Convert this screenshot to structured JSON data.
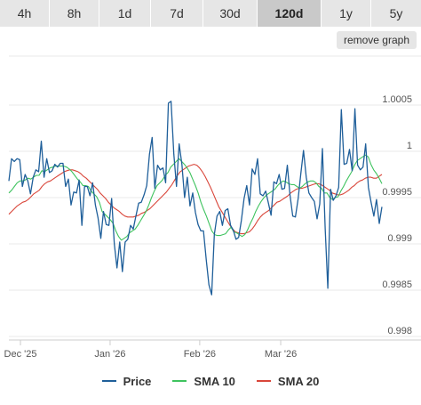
{
  "timeframes": {
    "items": [
      "4h",
      "8h",
      "1d",
      "7d",
      "30d",
      "120d",
      "1y",
      "5y"
    ],
    "active": "120d"
  },
  "remove_graph_label": "remove graph",
  "colors": {
    "price": "#1f5f9a",
    "sma10": "#3fc35f",
    "sma20": "#d9463a",
    "grid": "#e8e8e8",
    "axis_text": "#555555"
  },
  "chart_data": {
    "type": "line",
    "ylim": [
      0.998,
      1.0005
    ],
    "yticks": [
      0.998,
      0.9985,
      0.999,
      0.9995,
      1,
      1.0005
    ],
    "ytick_labels": [
      "0.998",
      "0.9985",
      "0.999",
      "0.9995",
      "1",
      "1.0005"
    ],
    "xlim": [
      0,
      129
    ],
    "xticks": [
      {
        "x": 4,
        "label": "Dec '25"
      },
      {
        "x": 35,
        "label": "Jan '26"
      },
      {
        "x": 66,
        "label": "Feb '26"
      },
      {
        "x": 94,
        "label": "Mar '26"
      }
    ],
    "grid": true,
    "legend": "bottom",
    "series": [
      {
        "name": "Price",
        "values": [
          0.99968,
          0.99992,
          0.99989,
          0.99992,
          0.99991,
          0.99962,
          0.99975,
          0.99968,
          0.99954,
          0.99972,
          0.9998,
          0.99978,
          1.00011,
          0.99972,
          0.99992,
          0.99977,
          0.99979,
          0.99986,
          0.99983,
          0.99987,
          0.99987,
          0.99962,
          0.9997,
          0.99942,
          0.99956,
          0.99955,
          0.99969,
          0.9992,
          0.99962,
          0.99962,
          0.99952,
          0.99966,
          0.99942,
          0.99928,
          0.99906,
          0.99935,
          0.99921,
          0.9992,
          0.99949,
          0.999,
          0.99874,
          0.99902,
          0.9987,
          0.99902,
          0.99905,
          0.9992,
          0.99916,
          0.9993,
          0.99944,
          0.99945,
          0.99953,
          0.99963,
          0.99997,
          1.00015,
          0.9996,
          0.99985,
          0.9998,
          0.99982,
          0.99966,
          1.00052,
          1.00054,
          0.99997,
          0.99962,
          1.00008,
          0.99986,
          0.9995,
          0.99972,
          0.99941,
          0.99955,
          0.99934,
          0.99921,
          0.99914,
          0.99914,
          0.99883,
          0.99856,
          0.99845,
          0.9991,
          0.9993,
          0.99935,
          0.9992,
          0.99936,
          0.99938,
          0.9992,
          0.99915,
          0.99905,
          0.99907,
          0.99925,
          0.99949,
          0.99963,
          0.99942,
          0.99981,
          0.99975,
          0.99992,
          0.99954,
          0.99952,
          0.99957,
          0.99944,
          0.99931,
          0.99967,
          0.99965,
          0.99975,
          0.99959,
          0.9996,
          0.99985,
          0.99953,
          0.9993,
          0.99929,
          0.99949,
          0.99976,
          1.00001,
          0.99972,
          0.99955,
          0.9995,
          0.99946,
          0.99927,
          0.99943,
          1.00003,
          0.99917,
          0.99852,
          0.99959,
          0.99947,
          0.99952,
          0.99961,
          1.00045,
          0.99986,
          0.99987,
          1.00002,
          0.99979,
          1.00046,
          0.99985,
          0.9998,
          0.99983,
          1.00008,
          0.99961,
          0.99945,
          0.9993,
          0.99948,
          0.99922,
          0.9994
        ]
      },
      {
        "name": "SMA 10",
        "values": [
          0.99955,
          0.99958,
          0.99962,
          0.99966,
          0.99968,
          0.99968,
          0.99969,
          0.99971,
          0.9997,
          0.99972,
          0.99974,
          0.99974,
          0.99979,
          0.99978,
          0.9998,
          0.99982,
          0.99983,
          0.99984,
          0.99984,
          0.99984,
          0.99984,
          0.99983,
          0.99981,
          0.99978,
          0.99974,
          0.9997,
          0.99967,
          0.99963,
          0.99963,
          0.99962,
          0.99957,
          0.99954,
          0.99951,
          0.99945,
          0.99935,
          0.99932,
          0.99929,
          0.99926,
          0.99922,
          0.99914,
          0.99908,
          0.99904,
          0.99906,
          0.99908,
          0.99912,
          0.99914,
          0.99916,
          0.9992,
          0.99925,
          0.9993,
          0.99935,
          0.99942,
          0.9995,
          0.99957,
          0.99963,
          0.99966,
          0.99969,
          0.99974,
          0.99977,
          0.99983,
          0.99986,
          0.99989,
          0.99992,
          0.99989,
          0.99986,
          0.99982,
          0.99977,
          0.9997,
          0.99963,
          0.99955,
          0.99945,
          0.99937,
          0.9993,
          0.99922,
          0.99914,
          0.9991,
          0.99909,
          0.99909,
          0.9991,
          0.99911,
          0.99915,
          0.99918,
          0.99913,
          0.99912,
          0.9991,
          0.99908,
          0.9991,
          0.99915,
          0.99922,
          0.99928,
          0.99935,
          0.99941,
          0.99946,
          0.9995,
          0.99953,
          0.99955,
          0.99957,
          0.99959,
          0.99963,
          0.99966,
          0.99968,
          0.99967,
          0.99965,
          0.99964,
          0.99964,
          0.99962,
          0.9996,
          0.99962,
          0.99965,
          0.99967,
          0.99968,
          0.99968,
          0.99966,
          0.99962,
          0.9996,
          0.99955,
          0.99955,
          0.9995,
          0.99948,
          0.9995,
          0.99951,
          0.99957,
          0.99962,
          0.99968,
          0.99973,
          0.99978,
          0.99985,
          0.9999,
          0.99992,
          0.99994,
          0.99996,
          0.99994,
          0.99986,
          0.9998,
          0.99976,
          0.99971,
          0.99965
        ]
      },
      {
        "name": "SMA 20",
        "values": [
          0.99932,
          0.99935,
          0.99938,
          0.99941,
          0.99943,
          0.99945,
          0.99946,
          0.99948,
          0.99951,
          0.99954,
          0.99956,
          0.99958,
          0.99962,
          0.99965,
          0.99967,
          0.99968,
          0.9997,
          0.99972,
          0.99974,
          0.99976,
          0.99978,
          0.99979,
          0.9998,
          0.9998,
          0.99979,
          0.99978,
          0.99976,
          0.99973,
          0.99971,
          0.99968,
          0.99965,
          0.99962,
          0.99959,
          0.99955,
          0.99952,
          0.99949,
          0.99945,
          0.99942,
          0.99939,
          0.99937,
          0.99935,
          0.99932,
          0.9993,
          0.99929,
          0.99929,
          0.99929,
          0.9993,
          0.99931,
          0.99933,
          0.99934,
          0.99936,
          0.99938,
          0.99941,
          0.99944,
          0.99947,
          0.9995,
          0.99953,
          0.99956,
          0.9996,
          0.99964,
          0.99969,
          0.99974,
          0.99978,
          0.9998,
          0.99982,
          0.99984,
          0.99985,
          0.99986,
          0.99985,
          0.99982,
          0.99978,
          0.99973,
          0.99967,
          0.99961,
          0.99954,
          0.99947,
          0.9994,
          0.99935,
          0.9993,
          0.99925,
          0.9992,
          0.99916,
          0.99913,
          0.99912,
          0.99911,
          0.99911,
          0.99912,
          0.99913,
          0.99916,
          0.9992,
          0.99925,
          0.99929,
          0.99932,
          0.99934,
          0.99936,
          0.99939,
          0.99942,
          0.99945,
          0.99946,
          0.99948,
          0.9995,
          0.99952,
          0.99955,
          0.99957,
          0.99959,
          0.9996,
          0.9996,
          0.99961,
          0.99962,
          0.99963,
          0.99964,
          0.99965,
          0.99965,
          0.99964,
          0.99962,
          0.9996,
          0.99958,
          0.99955,
          0.99954,
          0.99953,
          0.99953,
          0.99954,
          0.99956,
          0.99958,
          0.99961,
          0.99963,
          0.99966,
          0.99968,
          0.99969,
          0.99971,
          0.99972,
          0.99972,
          0.99971,
          0.99971,
          0.99973,
          0.99975
        ]
      }
    ]
  }
}
